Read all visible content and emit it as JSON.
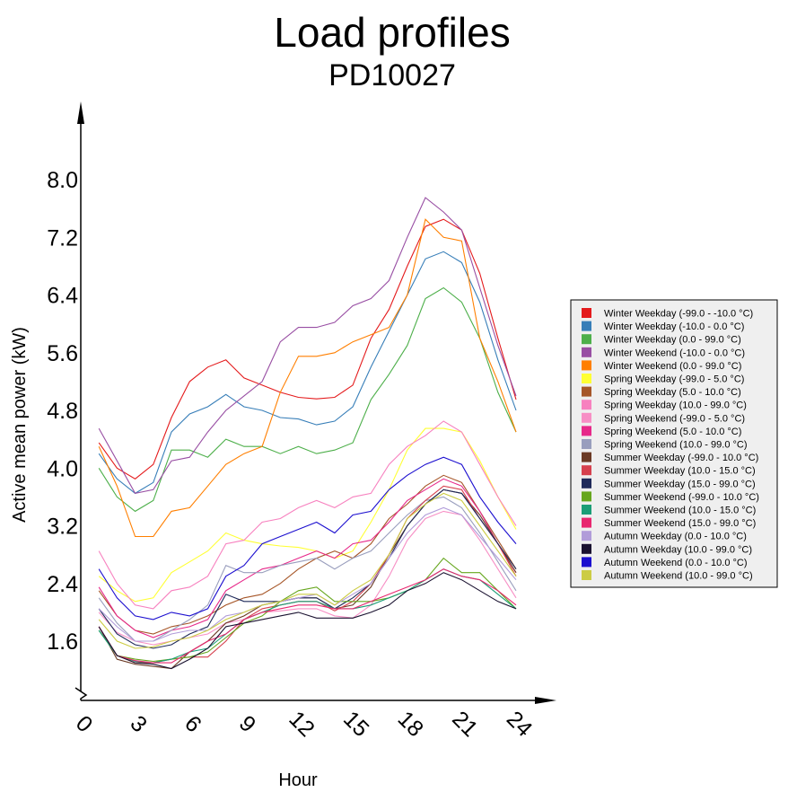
{
  "chart_data": {
    "type": "line",
    "title": "Load profiles",
    "subtitle": "PD10027",
    "xlabel": "Hour",
    "ylabel": "Active mean power (kW)",
    "xlim": [
      0,
      24
    ],
    "ylim": [
      0.8,
      8.8
    ],
    "xticks": [
      "0",
      "3",
      "6",
      "9",
      "12",
      "15",
      "18",
      "21",
      "24"
    ],
    "yticks": [
      "1.6",
      "2.4",
      "3.2",
      "4.0",
      "4.8",
      "5.6",
      "6.4",
      "7.2",
      "8.0"
    ],
    "grid": false,
    "legend_position": "right",
    "x": [
      1,
      2,
      3,
      4,
      5,
      6,
      7,
      8,
      9,
      10,
      11,
      12,
      13,
      14,
      15,
      16,
      17,
      18,
      19,
      20,
      21,
      22,
      23,
      24
    ],
    "series": [
      {
        "name": "Winter Weekday (-99.0 - -10.0 °C)",
        "color": "#e41a1c",
        "values": [
          4.35,
          4.0,
          3.85,
          4.05,
          4.7,
          5.2,
          5.4,
          5.5,
          5.25,
          5.15,
          5.05,
          4.98,
          4.96,
          4.98,
          5.15,
          5.8,
          6.2,
          6.8,
          7.35,
          7.45,
          7.3,
          6.7,
          5.8,
          4.95
        ]
      },
      {
        "name": "Winter Weekday (-10.0 - 0.0 °C)",
        "color": "#377eb8",
        "values": [
          4.2,
          3.85,
          3.65,
          3.8,
          4.5,
          4.75,
          4.85,
          5.02,
          4.85,
          4.8,
          4.7,
          4.68,
          4.6,
          4.65,
          4.85,
          5.4,
          5.9,
          6.4,
          6.9,
          7.0,
          6.85,
          6.3,
          5.5,
          4.8
        ]
      },
      {
        "name": "Winter Weekday (0.0 - 99.0 °C)",
        "color": "#4daf4a",
        "values": [
          4.0,
          3.6,
          3.4,
          3.55,
          4.25,
          4.25,
          4.15,
          4.4,
          4.3,
          4.3,
          4.2,
          4.3,
          4.2,
          4.25,
          4.35,
          4.95,
          5.3,
          5.7,
          6.35,
          6.5,
          6.3,
          5.8,
          5.05,
          4.5
        ]
      },
      {
        "name": "Winter Weekend (-10.0 - 0.0 °C)",
        "color": "#984ea3",
        "values": [
          4.55,
          4.1,
          3.65,
          3.7,
          4.1,
          4.15,
          4.5,
          4.8,
          5.0,
          5.2,
          5.75,
          5.95,
          5.95,
          6.02,
          6.25,
          6.35,
          6.6,
          7.2,
          7.75,
          7.55,
          7.3,
          6.5,
          5.7,
          5.0
        ]
      },
      {
        "name": "Winter Weekend (0.0 - 99.0 °C)",
        "color": "#ff7f00",
        "values": [
          4.3,
          3.75,
          3.05,
          3.05,
          3.4,
          3.45,
          3.75,
          4.05,
          4.2,
          4.3,
          5.05,
          5.55,
          5.55,
          5.6,
          5.75,
          5.85,
          5.95,
          6.4,
          7.45,
          7.2,
          7.15,
          5.8,
          5.2,
          4.5
        ]
      },
      {
        "name": "Spring Weekday (-99.0 - 5.0 °C)",
        "color": "#ffff33",
        "values": [
          2.5,
          2.3,
          2.15,
          2.2,
          2.55,
          2.7,
          2.85,
          3.1,
          3.0,
          2.95,
          2.92,
          2.9,
          2.85,
          2.75,
          2.85,
          3.25,
          3.7,
          4.25,
          4.55,
          4.55,
          4.5,
          4.1,
          3.6,
          3.15
        ]
      },
      {
        "name": "Spring Weekday (5.0 - 10.0 °C)",
        "color": "#a65628",
        "values": [
          2.3,
          1.95,
          1.75,
          1.7,
          1.8,
          1.85,
          1.95,
          2.1,
          2.2,
          2.25,
          2.4,
          2.6,
          2.75,
          2.85,
          2.75,
          2.95,
          3.3,
          3.5,
          3.75,
          3.9,
          3.8,
          3.4,
          3.0,
          2.6
        ]
      },
      {
        "name": "Spring Weekday (10.0 - 99.0 °C)",
        "color": "#f781bf",
        "values": [
          2.85,
          2.4,
          2.1,
          2.05,
          2.3,
          2.35,
          2.5,
          2.95,
          3.0,
          3.25,
          3.3,
          3.45,
          3.55,
          3.45,
          3.6,
          3.65,
          4.05,
          4.3,
          4.45,
          4.65,
          4.5,
          4.05,
          3.6,
          3.2
        ]
      },
      {
        "name": "Spring Weekend (-99.0 - 5.0 °C)",
        "color": "#f78fc5",
        "values": [
          2.0,
          1.72,
          1.6,
          1.55,
          1.6,
          1.65,
          1.7,
          1.85,
          1.9,
          2.0,
          2.02,
          2.05,
          2.05,
          1.95,
          1.92,
          2.1,
          2.5,
          3.0,
          3.3,
          3.4,
          3.35,
          3.0,
          2.6,
          2.2
        ]
      },
      {
        "name": "Spring Weekend (5.0 - 10.0 °C)",
        "color": "#e7298a",
        "values": [
          2.35,
          1.95,
          1.75,
          1.65,
          1.75,
          1.8,
          1.9,
          2.3,
          2.45,
          2.6,
          2.65,
          2.75,
          2.85,
          2.75,
          2.95,
          3.0,
          3.25,
          3.55,
          3.7,
          3.85,
          3.75,
          3.4,
          2.95,
          2.55
        ]
      },
      {
        "name": "Spring Weekend (10.0 - 99.0 °C)",
        "color": "#999ebd",
        "values": [
          2.2,
          1.85,
          1.6,
          1.6,
          1.75,
          1.9,
          2.1,
          2.65,
          2.55,
          2.55,
          2.65,
          2.7,
          2.75,
          2.6,
          2.75,
          2.85,
          3.1,
          3.35,
          3.55,
          3.6,
          3.45,
          3.1,
          2.7,
          2.3
        ]
      },
      {
        "name": "Summer Weekday (-99.0 - 10.0 °C)",
        "color": "#6b3a25",
        "values": [
          1.8,
          1.35,
          1.28,
          1.25,
          1.22,
          1.45,
          1.6,
          1.85,
          1.95,
          2.1,
          2.15,
          2.2,
          2.2,
          2.05,
          2.1,
          2.35,
          2.8,
          3.2,
          3.5,
          3.7,
          3.65,
          3.35,
          2.95,
          2.55
        ]
      },
      {
        "name": "Summer Weekday (10.0 - 15.0 °C)",
        "color": "#d6404e",
        "values": [
          1.8,
          1.4,
          1.3,
          1.3,
          1.35,
          1.38,
          1.38,
          1.6,
          1.9,
          2.05,
          2.1,
          2.15,
          2.15,
          2.02,
          2.15,
          2.4,
          2.8,
          3.3,
          3.55,
          3.75,
          3.7,
          3.3,
          2.95,
          2.5
        ]
      },
      {
        "name": "Summer Weekday (15.0 - 99.0 °C)",
        "color": "#1f2a5a",
        "values": [
          2.05,
          1.7,
          1.55,
          1.5,
          1.55,
          1.7,
          1.8,
          2.25,
          2.15,
          2.15,
          2.15,
          2.2,
          2.2,
          2.05,
          2.2,
          2.4,
          2.75,
          3.2,
          3.5,
          3.7,
          3.65,
          3.3,
          2.95,
          2.6
        ]
      },
      {
        "name": "Summer Weekend (-99.0 - 10.0 °C)",
        "color": "#66a61e",
        "values": [
          1.75,
          1.4,
          1.35,
          1.32,
          1.35,
          1.38,
          1.45,
          1.65,
          1.85,
          1.95,
          2.15,
          2.3,
          2.35,
          2.15,
          2.15,
          2.15,
          2.2,
          2.3,
          2.45,
          2.75,
          2.55,
          2.55,
          2.3,
          2.05
        ]
      },
      {
        "name": "Summer Weekend (10.0 - 15.0 °C)",
        "color": "#1b9e77",
        "values": [
          1.75,
          1.4,
          1.32,
          1.3,
          1.35,
          1.45,
          1.5,
          1.7,
          1.9,
          2.0,
          2.1,
          2.15,
          2.15,
          2.05,
          2.05,
          2.1,
          2.2,
          2.3,
          2.45,
          2.6,
          2.5,
          2.45,
          2.25,
          2.05
        ]
      },
      {
        "name": "Summer Weekend (15.0 - 99.0 °C)",
        "color": "#e8276f",
        "values": [
          1.8,
          1.4,
          1.33,
          1.3,
          1.3,
          1.45,
          1.6,
          1.7,
          1.9,
          2.0,
          2.05,
          2.1,
          2.1,
          2.05,
          2.05,
          2.15,
          2.25,
          2.35,
          2.45,
          2.6,
          2.5,
          2.45,
          2.3,
          2.1
        ]
      },
      {
        "name": "Autumn Weekday (0.0 - 10.0 °C)",
        "color": "#b19cd9",
        "values": [
          2.05,
          1.8,
          1.6,
          1.6,
          1.7,
          1.75,
          1.75,
          1.95,
          2.0,
          2.1,
          2.15,
          2.2,
          2.25,
          2.1,
          2.25,
          2.4,
          2.75,
          3.1,
          3.35,
          3.45,
          3.35,
          3.05,
          2.75,
          2.45
        ]
      },
      {
        "name": "Autumn Weekday (10.0 - 99.0 °C)",
        "color": "#1a1230",
        "values": [
          1.8,
          1.4,
          1.3,
          1.28,
          1.22,
          1.35,
          1.5,
          1.8,
          1.85,
          1.9,
          1.95,
          2.0,
          1.92,
          1.92,
          1.92,
          2.0,
          2.1,
          2.3,
          2.4,
          2.55,
          2.45,
          2.3,
          2.15,
          2.05
        ]
      },
      {
        "name": "Autumn Weekend (0.0 - 10.0 °C)",
        "color": "#1c0fcf",
        "values": [
          2.6,
          2.2,
          1.95,
          1.9,
          2.0,
          1.95,
          2.05,
          2.5,
          2.65,
          2.95,
          3.05,
          3.15,
          3.25,
          3.1,
          3.35,
          3.4,
          3.7,
          3.9,
          4.05,
          4.15,
          4.05,
          3.6,
          3.25,
          2.95
        ]
      },
      {
        "name": "Autumn Weekend (10.0 - 99.0 °C)",
        "color": "#cccc44",
        "values": [
          1.9,
          1.6,
          1.5,
          1.52,
          1.6,
          1.65,
          1.75,
          1.9,
          2.0,
          2.1,
          2.15,
          2.25,
          2.25,
          2.1,
          2.3,
          2.45,
          2.8,
          3.3,
          3.5,
          3.65,
          3.55,
          3.2,
          2.85,
          2.5
        ]
      }
    ]
  }
}
